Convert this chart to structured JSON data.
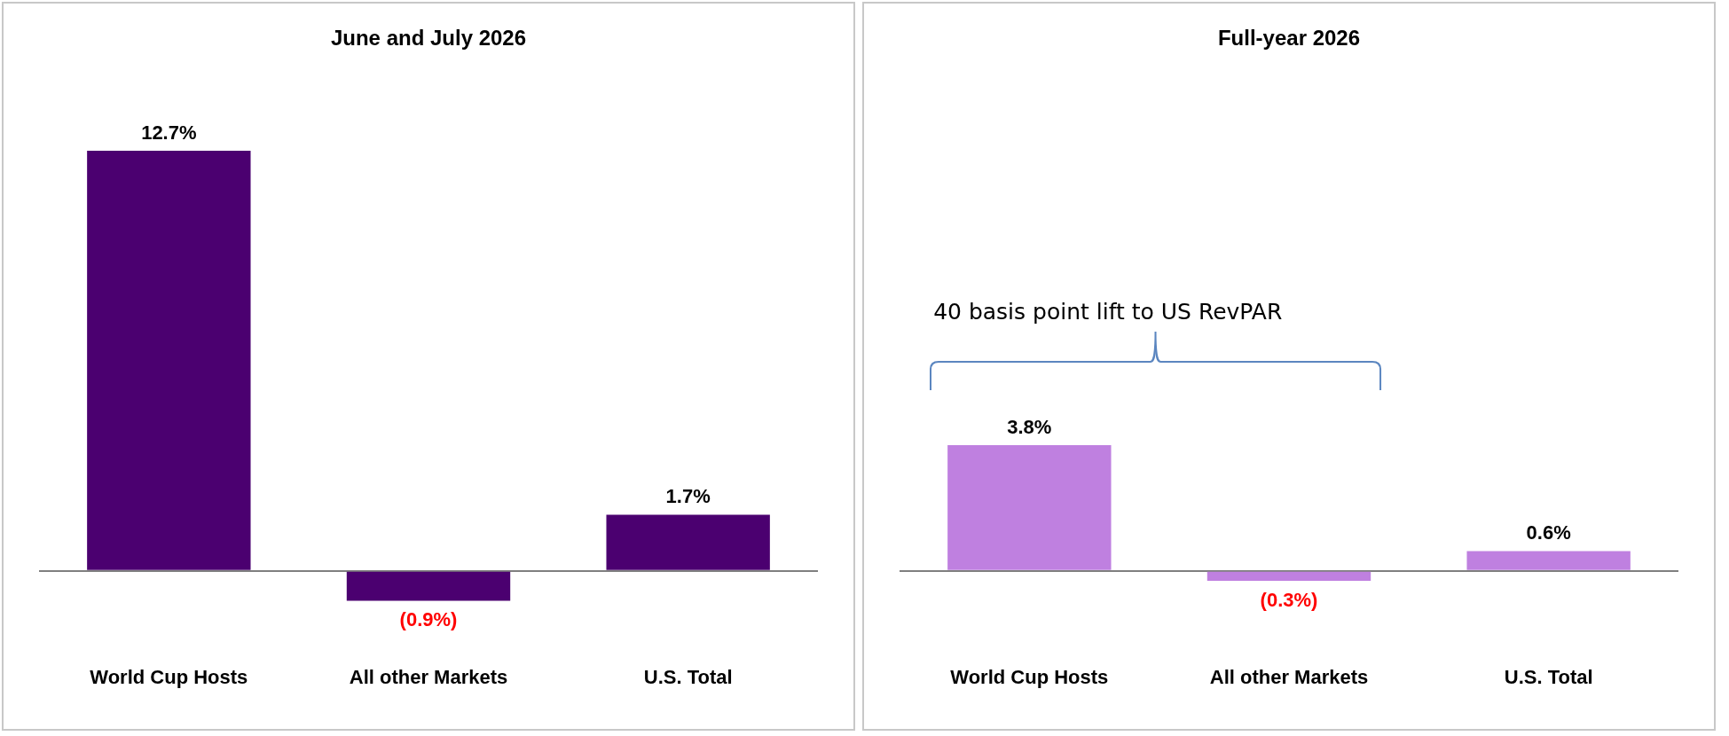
{
  "chart_data": [
    {
      "type": "bar",
      "title": "June and July 2026",
      "categories": [
        "World Cup Hosts",
        "All other Markets",
        "U.S. Total"
      ],
      "values": [
        12.7,
        -0.9,
        1.7
      ],
      "color": "#4b0070",
      "value_labels": [
        "12.7%",
        "(0.9%)",
        "1.7%"
      ],
      "legend": false
    },
    {
      "type": "bar",
      "title": "Full-year 2026",
      "categories": [
        "World Cup Hosts",
        "All other Markets",
        "U.S. Total"
      ],
      "values": [
        3.8,
        -0.3,
        0.6
      ],
      "color": "#bf80e0",
      "value_labels": [
        "3.8%",
        "(0.3%)",
        "0.6%"
      ],
      "legend": false,
      "annotations": [
        "40 basis point lift to US RevPAR"
      ]
    }
  ]
}
